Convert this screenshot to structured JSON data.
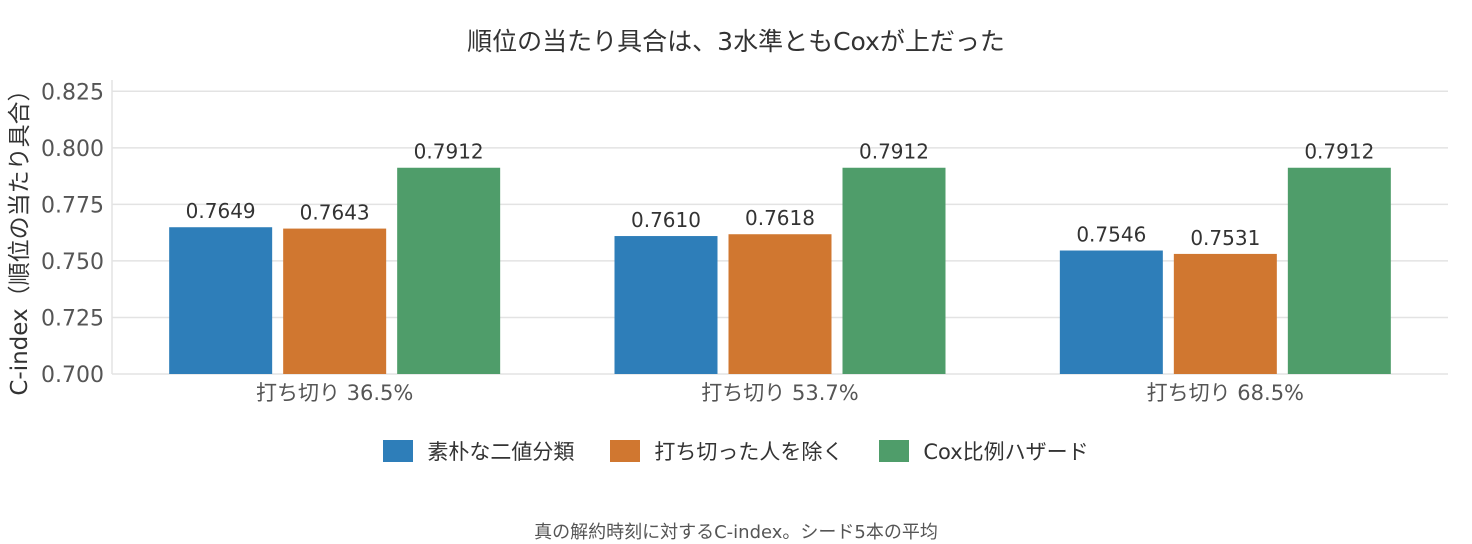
{
  "chart_data": {
    "type": "bar",
    "title": "順位の当たり具合は、3水準ともCoxが上だった",
    "ylabel": "C-index（順位の当たり具合）",
    "xlabel": "",
    "caption": "真の解約時刻に対するC-index。シード5本の平均",
    "categories": [
      "打ち切り 36.5%",
      "打ち切り 53.7%",
      "打ち切り 68.5%"
    ],
    "ylim": [
      0.7,
      0.83
    ],
    "yticks": [
      "0.700",
      "0.725",
      "0.750",
      "0.775",
      "0.800",
      "0.825"
    ],
    "grid": true,
    "legend_position": "bottom",
    "series": [
      {
        "name": "素朴な二値分類",
        "values": [
          0.7649,
          0.761,
          0.7546
        ],
        "labels": [
          "0.7649",
          "0.7610",
          "0.7546"
        ],
        "color": "#2e7eb9"
      },
      {
        "name": "打ち切った人を除く",
        "values": [
          0.7643,
          0.7618,
          0.7531
        ],
        "labels": [
          "0.7643",
          "0.7618",
          "0.7531"
        ],
        "color": "#d07730"
      },
      {
        "name": "Cox比例ハザード",
        "values": [
          0.7912,
          0.7912,
          0.7912
        ],
        "labels": [
          "0.7912",
          "0.7912",
          "0.7912"
        ],
        "color": "#4f9d6a"
      }
    ]
  }
}
